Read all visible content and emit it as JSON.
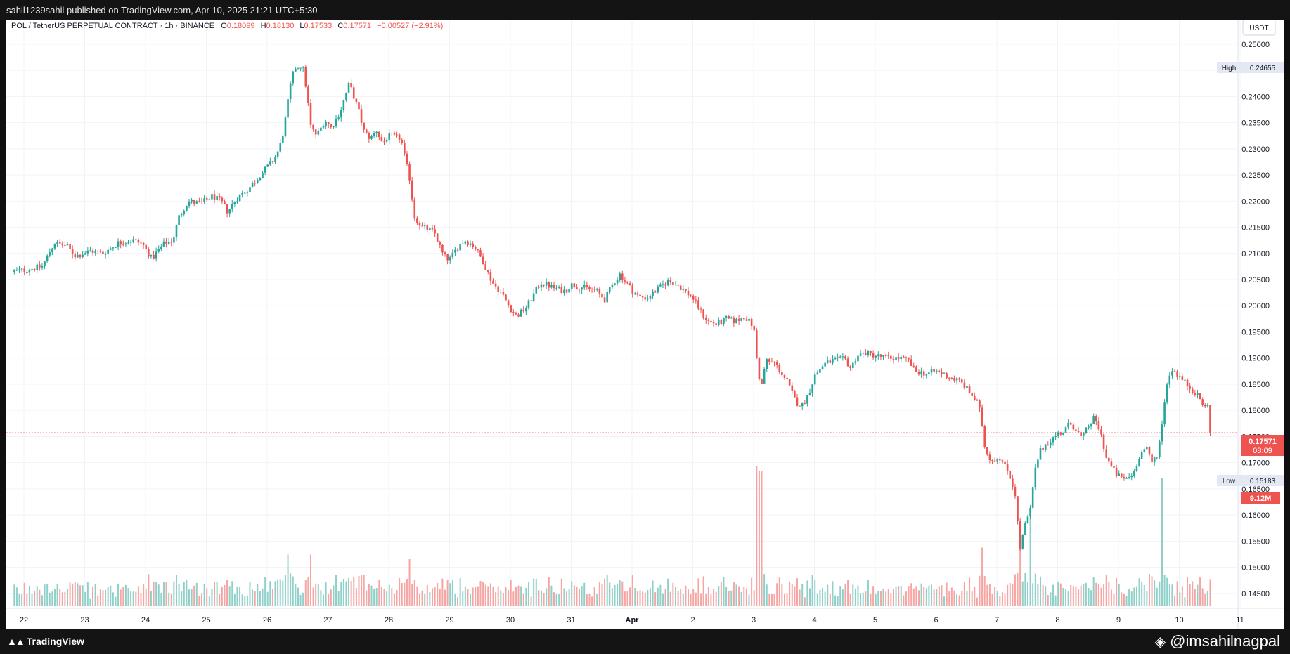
{
  "publish_line": "sahil1239sahil published on TradingView.com, Apr 10, 2025 21:21 UTC+5:30",
  "header": {
    "symbol": "POL / TetherUS PERPETUAL CONTRACT · 1h · BINANCE",
    "o_label": "O",
    "o_value": "0.18099",
    "h_label": "H",
    "h_value": "0.18130",
    "l_label": "L",
    "l_value": "0.17533",
    "c_label": "C",
    "c_value": "0.17571",
    "change": "−0.00527 (−2.91%)"
  },
  "currency_button": "USDT",
  "high_label": "High",
  "high_value": "0.24655",
  "low_label": "Low",
  "low_value": "0.15183",
  "last_price": "0.17571",
  "countdown": "08:09",
  "volume_label": "9.12M",
  "footer": {
    "brand": "TradingView",
    "watermark": "@imsahilnagpal"
  },
  "colors": {
    "up": "#26a69a",
    "down": "#ef5350",
    "up_vol": "#8fd0c9",
    "down_vol": "#f6a5a3"
  },
  "chart_data": {
    "type": "candlestick",
    "symbol": "POL / TetherUS PERPETUAL CONTRACT",
    "interval": "1h",
    "exchange": "BINANCE",
    "x_ticks": [
      "22",
      "23",
      "24",
      "25",
      "26",
      "27",
      "28",
      "29",
      "30",
      "31",
      "Apr",
      "2",
      "3",
      "4",
      "5",
      "6",
      "7",
      "8",
      "9",
      "10",
      "11"
    ],
    "y_ticks": [
      "0.25000",
      "0.24500",
      "0.24000",
      "0.23500",
      "0.23000",
      "0.22500",
      "0.22000",
      "0.21500",
      "0.21000",
      "0.20500",
      "0.20000",
      "0.19500",
      "0.19000",
      "0.18500",
      "0.18000",
      "0.17500",
      "0.17000",
      "0.16500",
      "0.16000",
      "0.15500",
      "0.15000",
      "0.14500"
    ],
    "ylim": [
      0.1435,
      0.252
    ],
    "x_range_days": [
      21.8,
      41.0
    ],
    "high": 0.24655,
    "low": 0.15183,
    "last": 0.17571,
    "close_path": [
      [
        21.8,
        0.2065
      ],
      [
        22.0,
        0.2068
      ],
      [
        22.3,
        0.2075
      ],
      [
        22.5,
        0.212
      ],
      [
        22.7,
        0.2115
      ],
      [
        22.85,
        0.2095
      ],
      [
        23.1,
        0.2105
      ],
      [
        23.3,
        0.21
      ],
      [
        23.55,
        0.212
      ],
      [
        23.8,
        0.2125
      ],
      [
        23.95,
        0.2118
      ],
      [
        24.1,
        0.209
      ],
      [
        24.3,
        0.2118
      ],
      [
        24.45,
        0.2125
      ],
      [
        24.55,
        0.217
      ],
      [
        24.7,
        0.22
      ],
      [
        24.9,
        0.2195
      ],
      [
        25.1,
        0.221
      ],
      [
        25.25,
        0.2198
      ],
      [
        25.35,
        0.218
      ],
      [
        25.5,
        0.2205
      ],
      [
        25.7,
        0.2225
      ],
      [
        25.9,
        0.2252
      ],
      [
        26.1,
        0.2278
      ],
      [
        26.2,
        0.23
      ],
      [
        26.28,
        0.234
      ],
      [
        26.38,
        0.242
      ],
      [
        26.45,
        0.2455
      ],
      [
        26.58,
        0.246
      ],
      [
        26.65,
        0.241
      ],
      [
        26.72,
        0.234
      ],
      [
        26.82,
        0.2325
      ],
      [
        26.95,
        0.2355
      ],
      [
        27.05,
        0.234
      ],
      [
        27.2,
        0.237
      ],
      [
        27.35,
        0.2425
      ],
      [
        27.5,
        0.2375
      ],
      [
        27.6,
        0.233
      ],
      [
        27.7,
        0.232
      ],
      [
        27.8,
        0.2335
      ],
      [
        27.9,
        0.231
      ],
      [
        28.0,
        0.2325
      ],
      [
        28.2,
        0.232
      ],
      [
        28.25,
        0.229
      ],
      [
        28.35,
        0.224
      ],
      [
        28.42,
        0.217
      ],
      [
        28.55,
        0.215
      ],
      [
        28.75,
        0.214
      ],
      [
        28.9,
        0.2095
      ],
      [
        29.0,
        0.2088
      ],
      [
        29.15,
        0.2115
      ],
      [
        29.25,
        0.2125
      ],
      [
        29.4,
        0.2115
      ],
      [
        29.55,
        0.2085
      ],
      [
        29.7,
        0.2045
      ],
      [
        29.85,
        0.2025
      ],
      [
        30.0,
        0.1995
      ],
      [
        30.1,
        0.198
      ],
      [
        30.25,
        0.1995
      ],
      [
        30.4,
        0.2025
      ],
      [
        30.5,
        0.2045
      ],
      [
        30.7,
        0.2035
      ],
      [
        30.9,
        0.2028
      ],
      [
        31.0,
        0.204
      ],
      [
        31.2,
        0.2035
      ],
      [
        31.4,
        0.203
      ],
      [
        31.55,
        0.2012
      ],
      [
        31.7,
        0.2045
      ],
      [
        31.8,
        0.206
      ],
      [
        32.0,
        0.203
      ],
      [
        32.1,
        0.2018
      ],
      [
        32.25,
        0.2015
      ],
      [
        32.4,
        0.203
      ],
      [
        32.6,
        0.2048
      ],
      [
        32.75,
        0.204
      ],
      [
        32.85,
        0.203
      ],
      [
        33.0,
        0.2015
      ],
      [
        33.15,
        0.1985
      ],
      [
        33.25,
        0.197
      ],
      [
        33.4,
        0.1965
      ],
      [
        33.55,
        0.1975
      ],
      [
        33.7,
        0.197
      ],
      [
        33.85,
        0.198
      ],
      [
        34.0,
        0.196
      ],
      [
        34.05,
        0.19
      ],
      [
        34.12,
        0.184
      ],
      [
        34.2,
        0.1895
      ],
      [
        34.35,
        0.189
      ],
      [
        34.55,
        0.1855
      ],
      [
        34.7,
        0.1815
      ],
      [
        34.8,
        0.181
      ],
      [
        34.9,
        0.183
      ],
      [
        35.0,
        0.1865
      ],
      [
        35.15,
        0.1888
      ],
      [
        35.3,
        0.1895
      ],
      [
        35.5,
        0.1898
      ],
      [
        35.6,
        0.188
      ],
      [
        35.7,
        0.1905
      ],
      [
        35.85,
        0.191
      ],
      [
        36.0,
        0.1905
      ],
      [
        36.2,
        0.19
      ],
      [
        36.4,
        0.19
      ],
      [
        36.55,
        0.1895
      ],
      [
        36.65,
        0.1875
      ],
      [
        36.85,
        0.187
      ],
      [
        37.0,
        0.1875
      ],
      [
        37.2,
        0.1865
      ],
      [
        37.4,
        0.1855
      ],
      [
        37.55,
        0.1835
      ],
      [
        37.7,
        0.181
      ],
      [
        37.75,
        0.178
      ],
      [
        37.8,
        0.173
      ],
      [
        37.9,
        0.1705
      ],
      [
        38.05,
        0.171
      ],
      [
        38.2,
        0.168
      ],
      [
        38.3,
        0.164
      ],
      [
        38.38,
        0.1535
      ],
      [
        38.45,
        0.1575
      ],
      [
        38.55,
        0.161
      ],
      [
        38.62,
        0.168
      ],
      [
        38.7,
        0.172
      ],
      [
        38.8,
        0.1735
      ],
      [
        38.9,
        0.1745
      ],
      [
        39.0,
        0.1755
      ],
      [
        39.1,
        0.176
      ],
      [
        39.2,
        0.1775
      ],
      [
        39.3,
        0.1765
      ],
      [
        39.4,
        0.1745
      ],
      [
        39.5,
        0.177
      ],
      [
        39.6,
        0.1785
      ],
      [
        39.7,
        0.176
      ],
      [
        39.8,
        0.171
      ],
      [
        39.95,
        0.168
      ],
      [
        40.05,
        0.167
      ],
      [
        40.15,
        0.167
      ],
      [
        40.25,
        0.168
      ],
      [
        40.35,
        0.1715
      ],
      [
        40.45,
        0.173
      ],
      [
        40.55,
        0.17
      ],
      [
        40.65,
        0.172
      ],
      [
        40.72,
        0.1775
      ],
      [
        40.78,
        0.1845
      ],
      [
        40.88,
        0.188
      ],
      [
        41.0,
        0.1865
      ],
      [
        41.12,
        0.185
      ],
      [
        41.25,
        0.1835
      ],
      [
        41.35,
        0.182
      ],
      [
        41.42,
        0.1805
      ],
      [
        41.48,
        0.1808
      ],
      [
        41.52,
        0.1757
      ]
    ],
    "volume_peaks": [
      [
        26.35,
        0.22
      ],
      [
        26.72,
        0.22
      ],
      [
        28.35,
        0.2
      ],
      [
        34.05,
        0.6
      ],
      [
        34.12,
        0.58
      ],
      [
        37.75,
        0.25
      ],
      [
        38.38,
        0.32
      ],
      [
        38.55,
        0.38
      ],
      [
        40.72,
        0.55
      ]
    ]
  }
}
